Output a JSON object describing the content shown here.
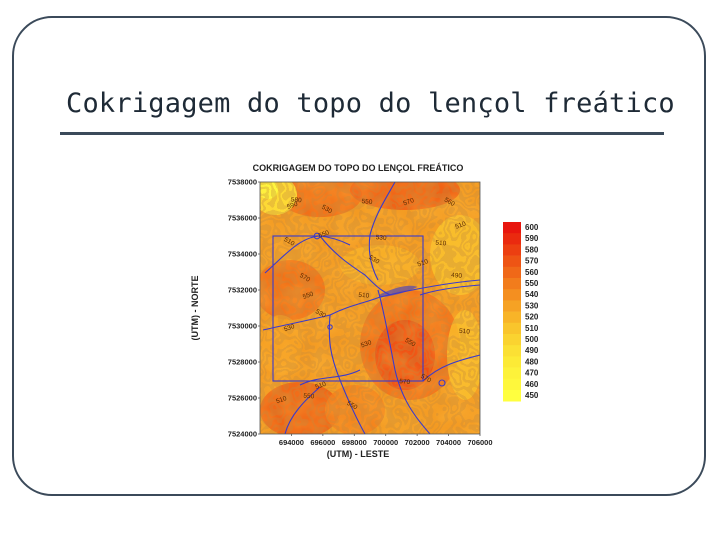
{
  "slide": {
    "title": "Cokrigagem do topo do lençol freático"
  },
  "chart_data": {
    "type": "heatmap",
    "title": "COKRIGAGEM  DO TOPO DO LENÇOL FREÁTICO",
    "xlabel": "(UTM)  - LESTE",
    "ylabel": "(UTM) - NORTE",
    "xlim": [
      692000,
      706000
    ],
    "ylim": [
      7524000,
      7538000
    ],
    "x_ticks": [
      "694000",
      "696000",
      "698000",
      "700000",
      "702000",
      "704000",
      "706000"
    ],
    "y_ticks": [
      "7538000",
      "7536000",
      "7534000",
      "7532000",
      "7530000",
      "7528000",
      "7526000",
      "7524000"
    ],
    "color_scale": {
      "labels": [
        "600",
        "590",
        "580",
        "570",
        "560",
        "550",
        "540",
        "530",
        "520",
        "510",
        "500",
        "490",
        "480",
        "470",
        "460",
        "450"
      ],
      "colors": [
        "#e8160e",
        "#ea2a0f",
        "#ec3f11",
        "#ee5414",
        "#f06818",
        "#f27c1c",
        "#f48f20",
        "#f6a224",
        "#f8b428",
        "#f9c52c",
        "#fad330",
        "#fbe034",
        "#fcea36",
        "#fdf23a",
        "#fef73c",
        "#ffff3f"
      ]
    },
    "contour_labels": [
      {
        "text": "570",
        "x": 701500,
        "y": 7536800
      },
      {
        "text": "550",
        "x": 698800,
        "y": 7536800
      },
      {
        "text": "530",
        "x": 696200,
        "y": 7536400
      },
      {
        "text": "590",
        "x": 694100,
        "y": 7536600
      },
      {
        "text": "580",
        "x": 694300,
        "y": 7536900
      },
      {
        "text": "560",
        "x": 704000,
        "y": 7536800
      },
      {
        "text": "510",
        "x": 704800,
        "y": 7535500
      },
      {
        "text": "510",
        "x": 703500,
        "y": 7534500
      },
      {
        "text": "510",
        "x": 693800,
        "y": 7534600
      },
      {
        "text": "550",
        "x": 696100,
        "y": 7535000
      },
      {
        "text": "530",
        "x": 699700,
        "y": 7534800
      },
      {
        "text": "530",
        "x": 699200,
        "y": 7533600
      },
      {
        "text": "510",
        "x": 702400,
        "y": 7533400
      },
      {
        "text": "490",
        "x": 704500,
        "y": 7532700
      },
      {
        "text": "570",
        "x": 694800,
        "y": 7532600
      },
      {
        "text": "550",
        "x": 695100,
        "y": 7531600
      },
      {
        "text": "510",
        "x": 698600,
        "y": 7531600
      },
      {
        "text": "530",
        "x": 695800,
        "y": 7530600
      },
      {
        "text": "530",
        "x": 693900,
        "y": 7529800
      },
      {
        "text": "510",
        "x": 705000,
        "y": 7529600
      },
      {
        "text": "550",
        "x": 701500,
        "y": 7529000
      },
      {
        "text": "530",
        "x": 698800,
        "y": 7528900
      },
      {
        "text": "570",
        "x": 701200,
        "y": 7526800
      },
      {
        "text": "570",
        "x": 702500,
        "y": 7527000
      },
      {
        "text": "510",
        "x": 695900,
        "y": 7526600
      },
      {
        "text": "550",
        "x": 695100,
        "y": 7526000
      },
      {
        "text": "550",
        "x": 697800,
        "y": 7525500
      },
      {
        "text": "510",
        "x": 693400,
        "y": 7525800
      }
    ],
    "grid": false,
    "legend": "right"
  }
}
